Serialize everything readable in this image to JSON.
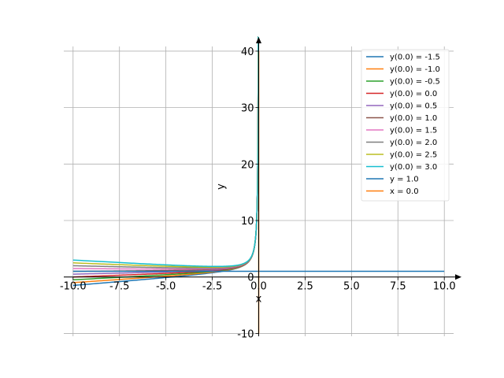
{
  "chart_data": {
    "type": "line",
    "xlabel": "x",
    "ylabel": "y",
    "xlim": [
      -10.5,
      10.5
    ],
    "ylim": [
      -10.5,
      42.5
    ],
    "grid": true,
    "legend_position": "top-right",
    "xticks": [
      -10.0,
      -7.5,
      -5.0,
      -2.5,
      0.0,
      2.5,
      5.0,
      7.5,
      10.0
    ],
    "xtick_labels": [
      "-10.0",
      "-7.5",
      "-5.0",
      "-2.5",
      "0.0",
      "2.5",
      "5.0",
      "7.5",
      "10.0"
    ],
    "yticks": [
      -10,
      0,
      10,
      20,
      30,
      40
    ],
    "ytick_labels": [
      "-10",
      "0",
      "10",
      "20",
      "30",
      "40"
    ],
    "solution_x_range": [
      -10.0,
      0.0
    ],
    "series": [
      {
        "name": "y(0.0) = -1.5",
        "y0": -1.5,
        "color": "#1f77b4"
      },
      {
        "name": "y(0.0) = -1.0",
        "y0": -1.0,
        "color": "#ff7f0e"
      },
      {
        "name": "y(0.0) = -0.5",
        "y0": -0.5,
        "color": "#2ca02c"
      },
      {
        "name": "y(0.0) = 0.0",
        "y0": 0.0,
        "color": "#d62728"
      },
      {
        "name": "y(0.0) = 0.5",
        "y0": 0.5,
        "color": "#9467bd"
      },
      {
        "name": "y(0.0) = 1.0",
        "y0": 1.0,
        "color": "#8c564b"
      },
      {
        "name": "y(0.0) = 1.5",
        "y0": 1.5,
        "color": "#e377c2"
      },
      {
        "name": "y(0.0) = 2.0",
        "y0": 2.0,
        "color": "#7f7f7f"
      },
      {
        "name": "y(0.0) = 2.5",
        "y0": 2.5,
        "color": "#bcbd22"
      },
      {
        "name": "y(0.0) = 3.0",
        "y0": 3.0,
        "color": "#17becf"
      }
    ],
    "reference_lines": [
      {
        "name": "y = 1.0",
        "kind": "horizontal",
        "value": 1.0,
        "color": "#1f77b4"
      },
      {
        "name": "x = 0.0",
        "kind": "vertical",
        "value": 0.0,
        "color": "#ff7f0e"
      }
    ]
  }
}
